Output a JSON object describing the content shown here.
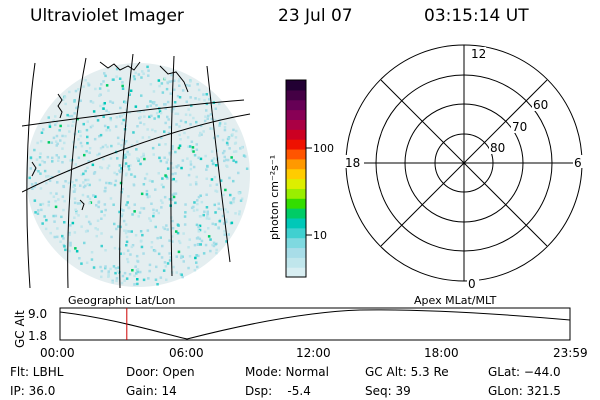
{
  "header": {
    "instrument": "Ultraviolet Imager",
    "date": "23 Jul 07",
    "time": "03:15:14 UT"
  },
  "colorbar": {
    "label": "photon cm⁻²s⁻¹",
    "ticks": [
      "100",
      "10"
    ],
    "colors": [
      "#d8eef2",
      "#c0e6ec",
      "#a8dde8",
      "#7fd9e0",
      "#40d0d0",
      "#00c8b8",
      "#00cc66",
      "#33dd00",
      "#99ee00",
      "#ddee00",
      "#ffcc00",
      "#ff9900",
      "#ff5500",
      "#ee1100",
      "#cc0022",
      "#aa0044",
      "#880055",
      "#660055",
      "#440044",
      "#220033"
    ]
  },
  "polar_plot": {
    "ring_labels": [
      "80",
      "70",
      "60"
    ],
    "clock_labels": {
      "top": "12",
      "right": "6",
      "bottom": "0",
      "left": "18"
    }
  },
  "map": {
    "left_caption": "Geographic Lat/Lon",
    "right_caption": "Apex MLat/MLT"
  },
  "timeline": {
    "axis_label": "GC Alt",
    "y_ticks": [
      "9.0",
      "1.8"
    ],
    "x_ticks": [
      "00:00",
      "06:00",
      "12:00",
      "18:00",
      "23:59"
    ],
    "current_time_fraction": 0.131,
    "marker_color": "#cc0000"
  },
  "status": {
    "flt": "Flt: LBHL",
    "ip": "IP: 36.0",
    "door": "Door: Open",
    "gain": "Gain: 14",
    "mode": "Mode: Normal",
    "dsp": "Dsp:    -5.4",
    "gc_alt": "GC Alt: 5.3 Re",
    "seq": "Seq: 39",
    "glat": "GLat: −44.0",
    "glon": "GLon: 321.5"
  }
}
